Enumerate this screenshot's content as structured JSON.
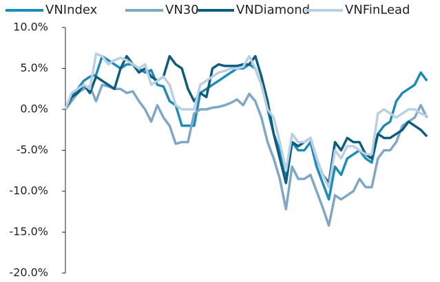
{
  "chart_data": {
    "type": "line",
    "ylim": [
      -20,
      10
    ],
    "yticks": [
      {
        "value": -20,
        "label": "-20.0%"
      },
      {
        "value": -15,
        "label": "-15.0%"
      },
      {
        "value": -10,
        "label": "-10.0%"
      },
      {
        "value": -5,
        "label": "-5.0%"
      },
      {
        "value": 0,
        "label": "0.0%"
      },
      {
        "value": 5,
        "label": "5.0%"
      },
      {
        "value": 10,
        "label": "10.0%"
      }
    ],
    "grid": false,
    "legend": "top",
    "series": [
      {
        "name": "VNIndex",
        "color": "#1a8cb9",
        "values": [
          0,
          1.5,
          2.5,
          3.5,
          4,
          4.2,
          6.5,
          6,
          5.5,
          5,
          5.5,
          5.5,
          5,
          4.5,
          4.8,
          3,
          2.8,
          1,
          0.5,
          -2,
          -2,
          -2,
          2,
          2.5,
          3,
          3.5,
          4,
          4.5,
          5,
          5,
          5.5,
          5,
          3,
          0,
          -3,
          -5,
          -8,
          -4,
          -5,
          -5,
          -4,
          -7,
          -9,
          -11,
          -7,
          -8,
          -6,
          -5.5,
          -5,
          -6,
          -6.5,
          -3,
          -2,
          -1.5,
          1,
          2,
          2.5,
          3,
          4.5,
          3.5
        ]
      },
      {
        "name": "VN30",
        "color": "#7ea6c8",
        "values": [
          0,
          1,
          2,
          2.5,
          2.8,
          1,
          3,
          2.8,
          2.5,
          2.5,
          2,
          2.2,
          1,
          0,
          -1.5,
          0.5,
          -1,
          -2,
          -4.2,
          -4,
          -4,
          -0.5,
          0,
          0,
          0.2,
          0.3,
          0.5,
          0.8,
          1.2,
          0.5,
          1.9,
          1,
          -1,
          -4,
          -6,
          -8.5,
          -12.2,
          -7,
          -8.5,
          -8.5,
          -8,
          -10,
          -12,
          -14.2,
          -10.5,
          -11,
          -10.5,
          -10,
          -8.5,
          -9.5,
          -9.5,
          -6,
          -5,
          -5,
          -4,
          -2,
          -1.5,
          -1,
          0.5,
          -1
        ]
      },
      {
        "name": "VNDiamond",
        "color": "#0b5d7e",
        "values": [
          0,
          1.5,
          2,
          3,
          2,
          4,
          3.5,
          3,
          2.5,
          5,
          6.5,
          5.5,
          4.5,
          5,
          4,
          3.5,
          4,
          6.5,
          5.5,
          5,
          2.5,
          1,
          2,
          1.5,
          5,
          5.5,
          5.3,
          5.3,
          5.3,
          5.5,
          5.5,
          6.5,
          4,
          1,
          -3,
          -6,
          -9,
          -4,
          -4.5,
          -4,
          -3.5,
          -6,
          -8,
          -9,
          -4,
          -5,
          -3.5,
          -4,
          -4,
          -5.5,
          -6,
          -3,
          -3.5,
          -3.5,
          -3,
          -2.5,
          -1.5,
          -2,
          -2.5,
          -3.3
        ]
      },
      {
        "name": "VNFinLead",
        "color": "#b9cfe3",
        "values": [
          0,
          2,
          2.5,
          3,
          2.5,
          6.8,
          6.5,
          5.5,
          6,
          6.3,
          6,
          5.5,
          5,
          5.5,
          3,
          3.5,
          4,
          3,
          0.5,
          0,
          0,
          0,
          3,
          3.5,
          4,
          4.5,
          4.7,
          5,
          5,
          5.2,
          6.5,
          5,
          3,
          0,
          -1,
          -4,
          -7.5,
          -3,
          -4,
          -4,
          -3.5,
          -6,
          -8,
          -9.5,
          -5,
          -6,
          -4.5,
          -4.5,
          -5,
          -5.5,
          -5.5,
          -0.5,
          0,
          -0.5,
          -1,
          -0.5,
          0,
          0,
          -0.5,
          -0.8
        ]
      }
    ]
  }
}
